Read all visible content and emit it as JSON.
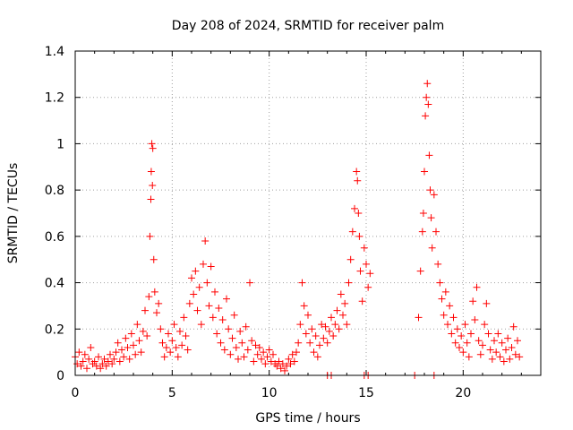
{
  "chart_data": {
    "type": "scatter",
    "title": "Day 208 of 2024, SRMTID for receiver palm",
    "xlabel": "GPS time / hours",
    "ylabel": "SRMTID / TECUs",
    "xlim": [
      0,
      24
    ],
    "ylim": [
      0,
      1.4
    ],
    "xticks": [
      {
        "value": 0,
        "label": "0"
      },
      {
        "value": 5,
        "label": "5"
      },
      {
        "value": 10,
        "label": "10"
      },
      {
        "value": 15,
        "label": "15"
      },
      {
        "value": 20,
        "label": "20"
      }
    ],
    "yticks": [
      {
        "value": 0,
        "label": "0"
      },
      {
        "value": 0.2,
        "label": "0.2"
      },
      {
        "value": 0.4,
        "label": "0.4"
      },
      {
        "value": 0.6,
        "label": "0.6"
      },
      {
        "value": 0.8,
        "label": "0.8"
      },
      {
        "value": 1.0,
        "label": "1"
      },
      {
        "value": 1.2,
        "label": "1.2"
      },
      {
        "value": 1.4,
        "label": "1.4"
      }
    ],
    "grid": true,
    "marker": "plus",
    "color": "#ff0000",
    "series": [
      {
        "name": "SRMTID",
        "points": [
          [
            0.0,
            0.08
          ],
          [
            0.1,
            0.05
          ],
          [
            0.2,
            0.1
          ],
          [
            0.3,
            0.04
          ],
          [
            0.4,
            0.06
          ],
          [
            0.5,
            0.09
          ],
          [
            0.6,
            0.03
          ],
          [
            0.7,
            0.07
          ],
          [
            0.8,
            0.12
          ],
          [
            0.9,
            0.05
          ],
          [
            1.0,
            0.06
          ],
          [
            1.1,
            0.04
          ],
          [
            1.2,
            0.08
          ],
          [
            1.3,
            0.03
          ],
          [
            1.4,
            0.05
          ],
          [
            1.5,
            0.07
          ],
          [
            1.6,
            0.04
          ],
          [
            1.7,
            0.06
          ],
          [
            1.8,
            0.09
          ],
          [
            1.9,
            0.05
          ],
          [
            2.0,
            0.07
          ],
          [
            2.1,
            0.1
          ],
          [
            2.2,
            0.14
          ],
          [
            2.3,
            0.06
          ],
          [
            2.4,
            0.11
          ],
          [
            2.5,
            0.08
          ],
          [
            2.6,
            0.16
          ],
          [
            2.7,
            0.12
          ],
          [
            2.8,
            0.07
          ],
          [
            2.9,
            0.18
          ],
          [
            3.0,
            0.13
          ],
          [
            3.1,
            0.09
          ],
          [
            3.2,
            0.22
          ],
          [
            3.3,
            0.15
          ],
          [
            3.4,
            0.1
          ],
          [
            3.5,
            0.19
          ],
          [
            3.6,
            0.28
          ],
          [
            3.7,
            0.17
          ],
          [
            3.8,
            0.34
          ],
          [
            3.85,
            0.6
          ],
          [
            3.9,
            0.76
          ],
          [
            3.92,
            0.88
          ],
          [
            3.95,
            1.0
          ],
          [
            3.98,
            0.82
          ],
          [
            4.0,
            0.98
          ],
          [
            4.05,
            0.5
          ],
          [
            4.1,
            0.36
          ],
          [
            4.2,
            0.27
          ],
          [
            4.3,
            0.31
          ],
          [
            4.4,
            0.2
          ],
          [
            4.5,
            0.14
          ],
          [
            4.6,
            0.08
          ],
          [
            4.7,
            0.12
          ],
          [
            4.8,
            0.18
          ],
          [
            4.9,
            0.1
          ],
          [
            5.0,
            0.15
          ],
          [
            5.1,
            0.22
          ],
          [
            5.2,
            0.12
          ],
          [
            5.3,
            0.08
          ],
          [
            5.4,
            0.19
          ],
          [
            5.5,
            0.13
          ],
          [
            5.6,
            0.25
          ],
          [
            5.7,
            0.17
          ],
          [
            5.8,
            0.11
          ],
          [
            5.9,
            0.31
          ],
          [
            6.0,
            0.42
          ],
          [
            6.1,
            0.35
          ],
          [
            6.2,
            0.45
          ],
          [
            6.3,
            0.28
          ],
          [
            6.4,
            0.38
          ],
          [
            6.5,
            0.22
          ],
          [
            6.6,
            0.48
          ],
          [
            6.7,
            0.58
          ],
          [
            6.8,
            0.4
          ],
          [
            6.9,
            0.3
          ],
          [
            7.0,
            0.47
          ],
          [
            7.1,
            0.25
          ],
          [
            7.2,
            0.36
          ],
          [
            7.3,
            0.18
          ],
          [
            7.4,
            0.29
          ],
          [
            7.5,
            0.14
          ],
          [
            7.6,
            0.24
          ],
          [
            7.7,
            0.11
          ],
          [
            7.8,
            0.33
          ],
          [
            7.9,
            0.2
          ],
          [
            8.0,
            0.09
          ],
          [
            8.1,
            0.16
          ],
          [
            8.2,
            0.26
          ],
          [
            8.3,
            0.12
          ],
          [
            8.4,
            0.07
          ],
          [
            8.5,
            0.19
          ],
          [
            8.6,
            0.14
          ],
          [
            8.7,
            0.08
          ],
          [
            8.8,
            0.21
          ],
          [
            8.9,
            0.11
          ],
          [
            9.0,
            0.4
          ],
          [
            9.1,
            0.15
          ],
          [
            9.2,
            0.06
          ],
          [
            9.3,
            0.13
          ],
          [
            9.4,
            0.09
          ],
          [
            9.5,
            0.12
          ],
          [
            9.6,
            0.07
          ],
          [
            9.7,
            0.1
          ],
          [
            9.8,
            0.05
          ],
          [
            9.9,
            0.08
          ],
          [
            10.0,
            0.11
          ],
          [
            10.1,
            0.06
          ],
          [
            10.2,
            0.09
          ],
          [
            10.3,
            0.05
          ],
          [
            10.4,
            0.04
          ],
          [
            10.5,
            0.06
          ],
          [
            10.6,
            0.03
          ],
          [
            10.7,
            0.05
          ],
          [
            10.8,
            0.02
          ],
          [
            10.9,
            0.04
          ],
          [
            11.0,
            0.07
          ],
          [
            11.1,
            0.05
          ],
          [
            11.2,
            0.09
          ],
          [
            11.3,
            0.06
          ],
          [
            11.4,
            0.1
          ],
          [
            11.5,
            0.14
          ],
          [
            11.6,
            0.22
          ],
          [
            11.7,
            0.4
          ],
          [
            11.8,
            0.3
          ],
          [
            11.9,
            0.18
          ],
          [
            12.0,
            0.26
          ],
          [
            12.1,
            0.14
          ],
          [
            12.2,
            0.2
          ],
          [
            12.3,
            0.1
          ],
          [
            12.4,
            0.17
          ],
          [
            12.5,
            0.08
          ],
          [
            12.6,
            0.13
          ],
          [
            12.7,
            0.22
          ],
          [
            12.8,
            0.16
          ],
          [
            12.9,
            0.21
          ],
          [
            13.0,
            0.14
          ],
          [
            13.1,
            0.19
          ],
          [
            13.2,
            0.25
          ],
          [
            13.3,
            0.17
          ],
          [
            13.4,
            0.22
          ],
          [
            13.5,
            0.28
          ],
          [
            13.6,
            0.2
          ],
          [
            13.7,
            0.35
          ],
          [
            13.8,
            0.26
          ],
          [
            13.9,
            0.31
          ],
          [
            14.0,
            0.22
          ],
          [
            14.1,
            0.4
          ],
          [
            14.2,
            0.5
          ],
          [
            14.3,
            0.62
          ],
          [
            14.4,
            0.72
          ],
          [
            14.5,
            0.88
          ],
          [
            14.55,
            0.84
          ],
          [
            14.6,
            0.7
          ],
          [
            14.65,
            0.6
          ],
          [
            14.7,
            0.45
          ],
          [
            14.8,
            0.32
          ],
          [
            14.9,
            0.55
          ],
          [
            15.0,
            0.48
          ],
          [
            15.1,
            0.38
          ],
          [
            15.2,
            0.44
          ],
          [
            13.0,
            0.0
          ],
          [
            13.2,
            0.0
          ],
          [
            14.9,
            0.0
          ],
          [
            15.1,
            0.0
          ],
          [
            17.5,
            0.0
          ],
          [
            17.7,
            0.25
          ],
          [
            17.8,
            0.45
          ],
          [
            17.9,
            0.62
          ],
          [
            17.95,
            0.7
          ],
          [
            18.0,
            0.88
          ],
          [
            18.05,
            1.12
          ],
          [
            18.1,
            1.2
          ],
          [
            18.15,
            1.26
          ],
          [
            18.2,
            1.17
          ],
          [
            18.25,
            0.95
          ],
          [
            18.3,
            0.8
          ],
          [
            18.35,
            0.68
          ],
          [
            18.4,
            0.55
          ],
          [
            18.5,
            0.0
          ],
          [
            18.5,
            0.78
          ],
          [
            18.6,
            0.62
          ],
          [
            18.7,
            0.48
          ],
          [
            18.8,
            0.4
          ],
          [
            18.9,
            0.33
          ],
          [
            19.0,
            0.26
          ],
          [
            19.1,
            0.36
          ],
          [
            19.2,
            0.22
          ],
          [
            19.3,
            0.3
          ],
          [
            19.4,
            0.18
          ],
          [
            19.5,
            0.25
          ],
          [
            19.6,
            0.14
          ],
          [
            19.7,
            0.2
          ],
          [
            19.8,
            0.12
          ],
          [
            19.9,
            0.17
          ],
          [
            20.0,
            0.1
          ],
          [
            20.1,
            0.22
          ],
          [
            20.2,
            0.14
          ],
          [
            20.3,
            0.08
          ],
          [
            20.4,
            0.18
          ],
          [
            20.5,
            0.32
          ],
          [
            20.6,
            0.24
          ],
          [
            20.7,
            0.38
          ],
          [
            20.8,
            0.15
          ],
          [
            20.9,
            0.09
          ],
          [
            21.0,
            0.13
          ],
          [
            21.1,
            0.22
          ],
          [
            21.2,
            0.31
          ],
          [
            21.3,
            0.18
          ],
          [
            21.4,
            0.11
          ],
          [
            21.5,
            0.07
          ],
          [
            21.6,
            0.15
          ],
          [
            21.7,
            0.1
          ],
          [
            21.8,
            0.18
          ],
          [
            21.9,
            0.08
          ],
          [
            22.0,
            0.14
          ],
          [
            22.1,
            0.06
          ],
          [
            22.2,
            0.11
          ],
          [
            22.3,
            0.16
          ],
          [
            22.4,
            0.07
          ],
          [
            22.5,
            0.12
          ],
          [
            22.6,
            0.21
          ],
          [
            22.7,
            0.09
          ],
          [
            22.8,
            0.15
          ],
          [
            22.9,
            0.08
          ]
        ]
      }
    ]
  }
}
